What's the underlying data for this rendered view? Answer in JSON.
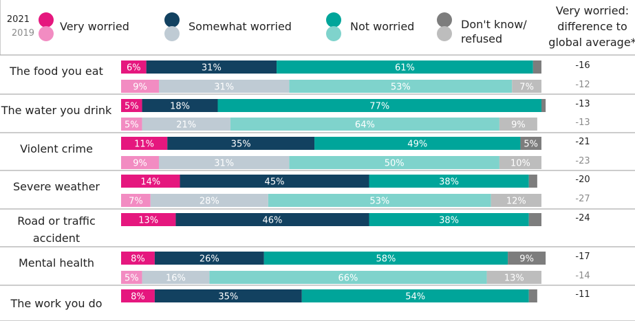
{
  "chart_data": {
    "type": "bar",
    "orientation": "horizontal",
    "stacked": true,
    "xlim": [
      0,
      100
    ],
    "years": [
      "2021",
      "2019"
    ],
    "legend": [
      {
        "key": "very",
        "label": [
          "Very worried"
        ],
        "color_2021": "#e5177e",
        "color_2019": "#f28cc2"
      },
      {
        "key": "somewhat",
        "label": [
          "Somewhat worried"
        ],
        "color_2021": "#124160",
        "color_2019": "#bfcbd4"
      },
      {
        "key": "not",
        "label": [
          "Not worried"
        ],
        "color_2021": "#00a59a",
        "color_2019": "#7fd3cc"
      },
      {
        "key": "dk",
        "label": [
          "Don't know/",
          "refused"
        ],
        "color_2021": "#7d7d7d",
        "color_2019": "#bdbdbd"
      }
    ],
    "diff_header": [
      "Very worried:",
      "difference to",
      "global average*"
    ],
    "label_colors": {
      "on_2021": "#ffffff",
      "on_2019": "#ffffff",
      "on_2019_somewhat": "#ffffff",
      "diff_2021": "#222222",
      "diff_2019": "#8a8a8a"
    },
    "colors": {
      "divider": "#9a9a9a"
    },
    "categories": [
      {
        "label": [
          "The food you eat"
        ],
        "rows": [
          {
            "year": "2021",
            "values": [
              6,
              31,
              61,
              2
            ],
            "labels": [
              "6%",
              "31%",
              "61%",
              ""
            ],
            "diff": "-16"
          },
          {
            "year": "2019",
            "values": [
              9,
              31,
              53,
              7
            ],
            "labels": [
              "9%",
              "31%",
              "53%",
              "7%"
            ],
            "diff": "-12"
          }
        ]
      },
      {
        "label": [
          "The water you drink"
        ],
        "rows": [
          {
            "year": "2021",
            "values": [
              5,
              18,
              77,
              1
            ],
            "labels": [
              "5%",
              "18%",
              "77%",
              ""
            ],
            "diff": "-13"
          },
          {
            "year": "2019",
            "values": [
              5,
              21,
              64,
              9
            ],
            "labels": [
              "5%",
              "21%",
              "64%",
              "9%"
            ],
            "diff": "-13"
          }
        ]
      },
      {
        "label": [
          "Violent crime"
        ],
        "rows": [
          {
            "year": "2021",
            "values": [
              11,
              35,
              49,
              5
            ],
            "labels": [
              "11%",
              "35%",
              "49%",
              "5%"
            ],
            "diff": "-21"
          },
          {
            "year": "2019",
            "values": [
              9,
              31,
              50,
              10
            ],
            "labels": [
              "9%",
              "31%",
              "50%",
              "10%"
            ],
            "diff": "-23"
          }
        ]
      },
      {
        "label": [
          "Severe weather"
        ],
        "rows": [
          {
            "year": "2021",
            "values": [
              14,
              45,
              38,
              2
            ],
            "labels": [
              "14%",
              "45%",
              "38%",
              ""
            ],
            "diff": "-20"
          },
          {
            "year": "2019",
            "values": [
              7,
              28,
              53,
              12
            ],
            "labels": [
              "7%",
              "28%",
              "53%",
              "12%"
            ],
            "diff": "-27"
          }
        ]
      },
      {
        "label": [
          "Road or traffic",
          "accident"
        ],
        "rows": [
          {
            "year": "2021",
            "values": [
              13,
              46,
              38,
              3
            ],
            "labels": [
              "13%",
              "46%",
              "38%",
              ""
            ],
            "diff": "-24"
          }
        ]
      },
      {
        "label": [
          "Mental health"
        ],
        "rows": [
          {
            "year": "2021",
            "values": [
              8,
              26,
              58,
              9
            ],
            "labels": [
              "8%",
              "26%",
              "58%",
              "9%"
            ],
            "diff": "-17"
          },
          {
            "year": "2019",
            "values": [
              5,
              16,
              66,
              13
            ],
            "labels": [
              "5%",
              "16%",
              "66%",
              "13%"
            ],
            "diff": "-14"
          }
        ]
      },
      {
        "label": [
          "The work you do"
        ],
        "rows": [
          {
            "year": "2021",
            "values": [
              8,
              35,
              54,
              2
            ],
            "labels": [
              "8%",
              "35%",
              "54%",
              ""
            ],
            "diff": "-11"
          }
        ]
      }
    ]
  }
}
